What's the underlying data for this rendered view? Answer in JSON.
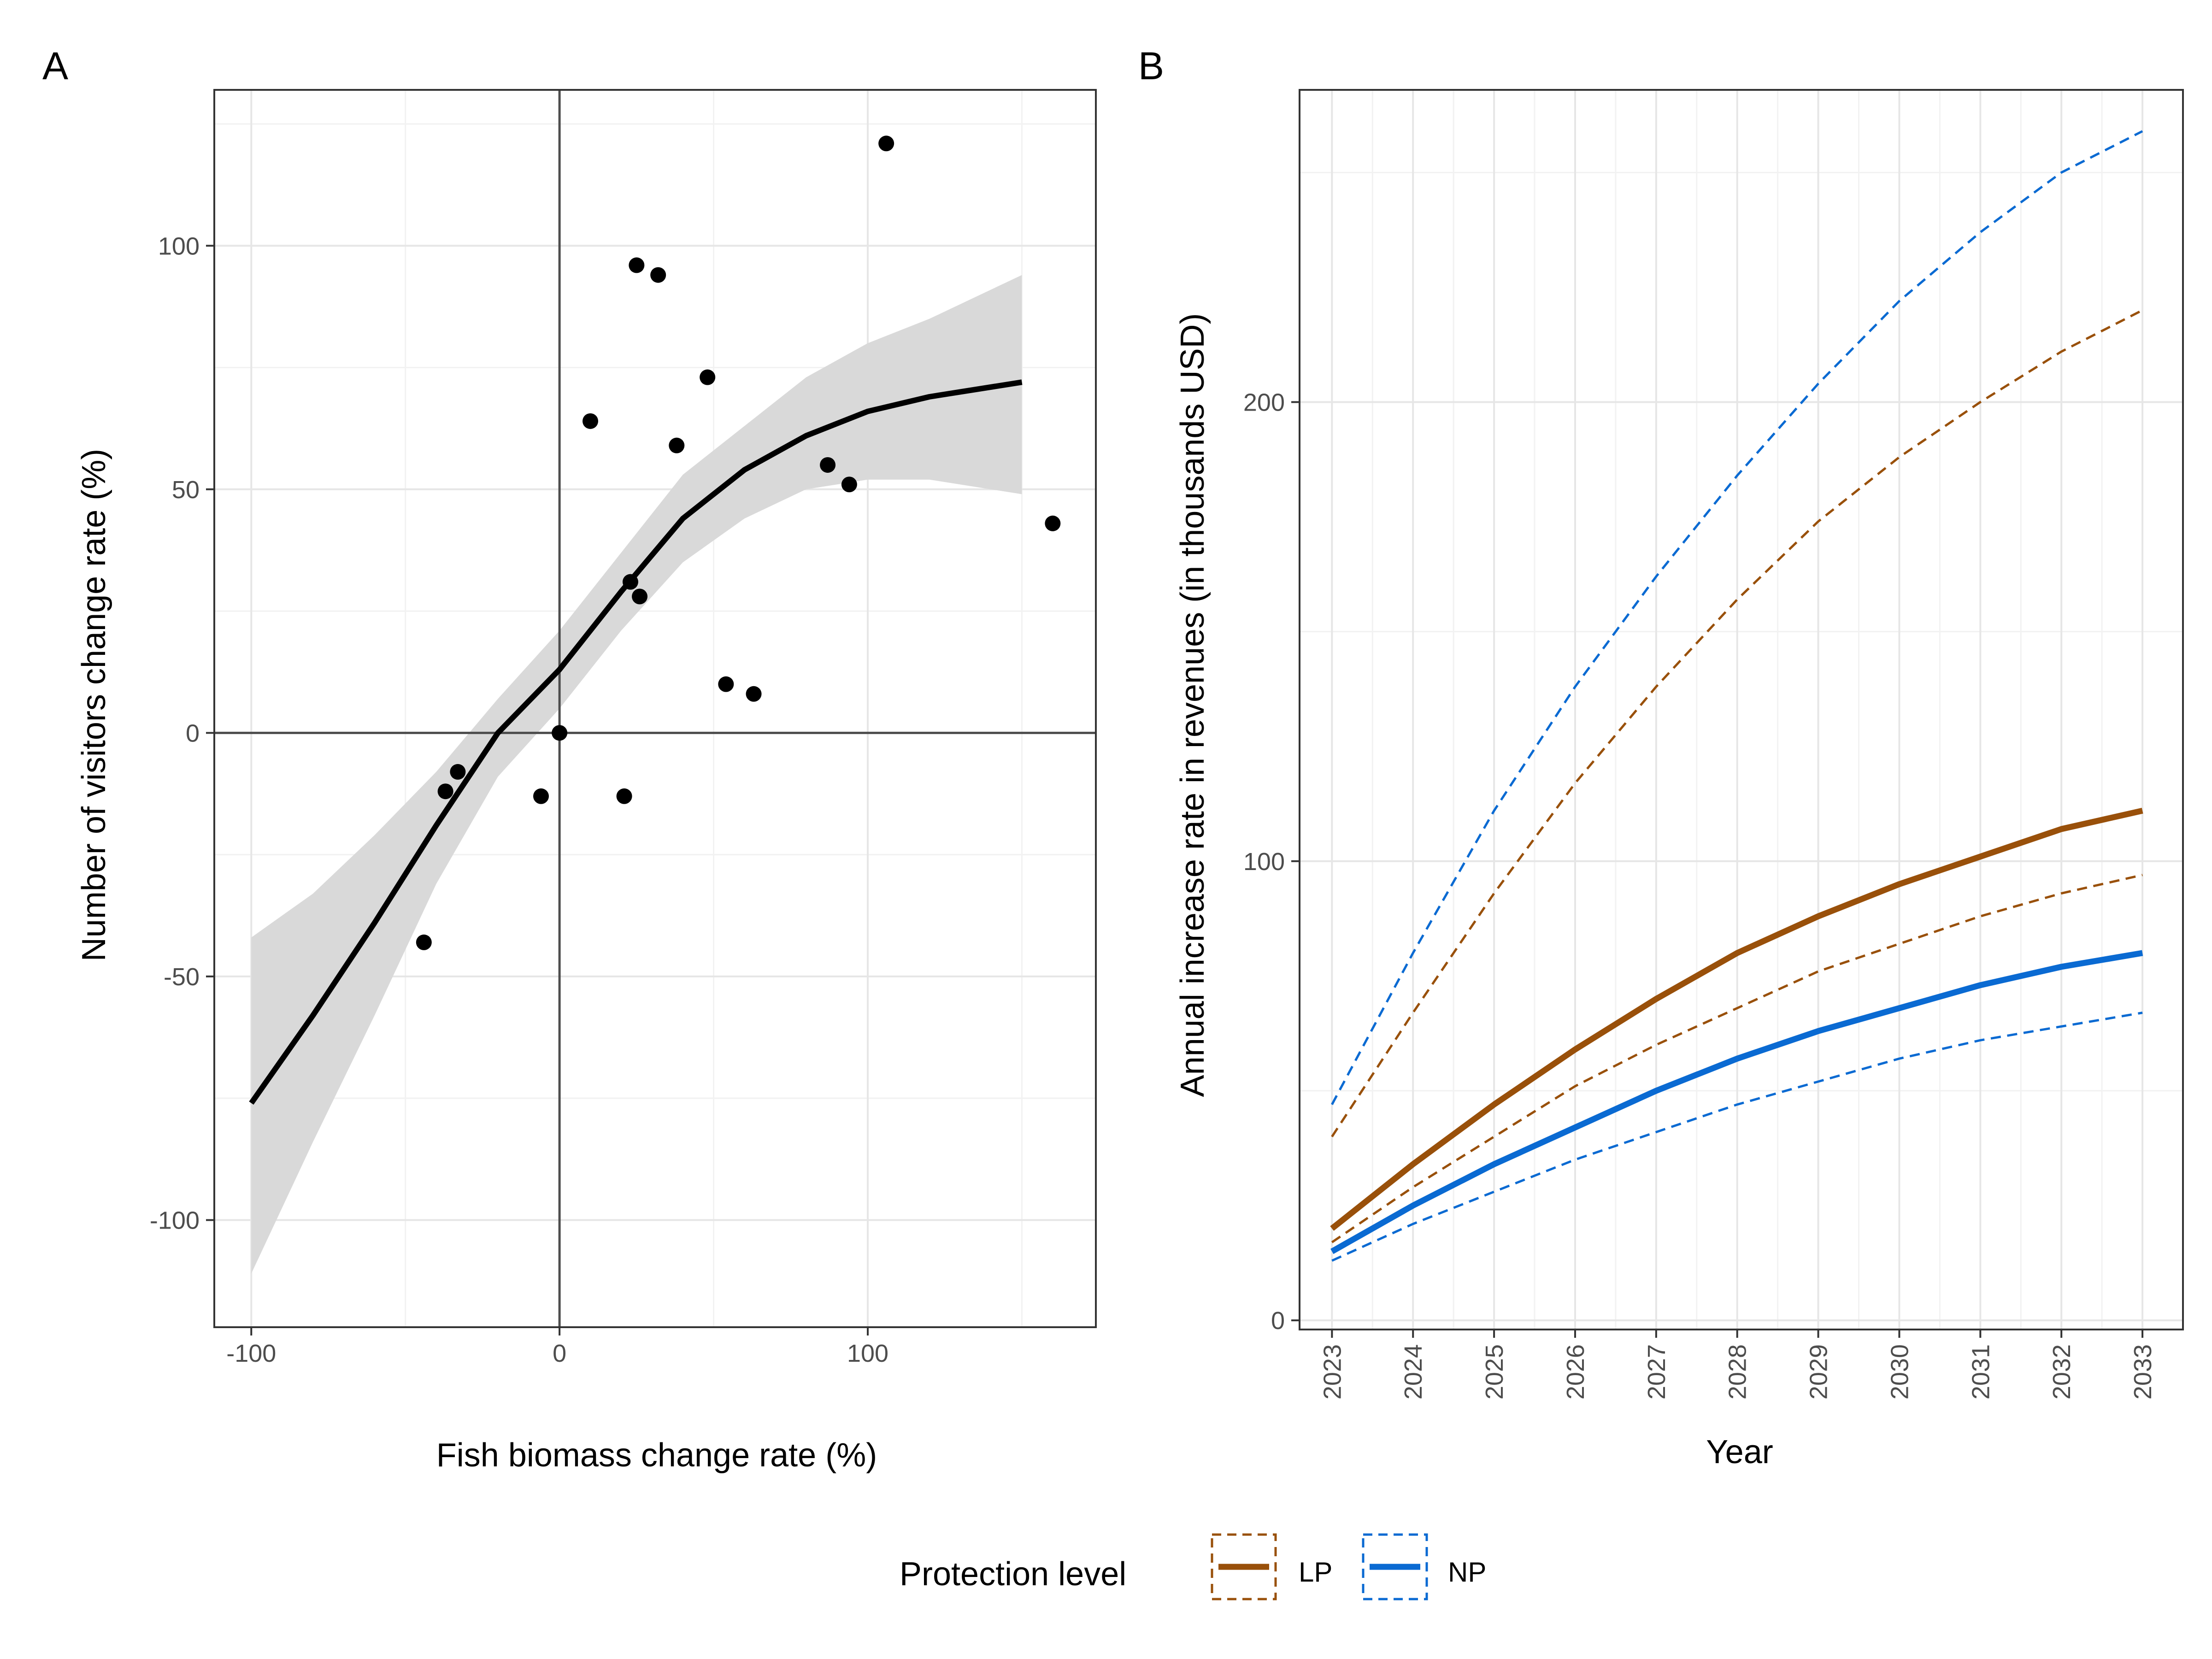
{
  "colors": {
    "LP": "#99500a",
    "NP": "#0a6ad2",
    "ribbon": "#d9d9d9",
    "grid_major": "#e6e6e6",
    "grid_minor": "#f2f2f2",
    "panel_border": "#333333",
    "ref_line": "#4d4d4d"
  },
  "chart_data": [
    {
      "panel": "A",
      "type": "scatter",
      "title": "",
      "xlabel": "Fish biomass change rate (%)",
      "ylabel": "Number of visitors change rate (%)",
      "xlim": [
        -112,
        174
      ],
      "ylim": [
        -122,
        132
      ],
      "xticks": [
        -100,
        0,
        100
      ],
      "xtick_labels": [
        "-100",
        "0",
        "100"
      ],
      "yticks": [
        -100,
        -50,
        0,
        50,
        100
      ],
      "ytick_labels": [
        "-100",
        "-50",
        "0",
        "50",
        "100"
      ],
      "grid": true,
      "reference_lines": {
        "x": 0,
        "y": 0
      },
      "points": [
        {
          "x": -44,
          "y": -43
        },
        {
          "x": -37,
          "y": -12
        },
        {
          "x": -33,
          "y": -8
        },
        {
          "x": -6,
          "y": -13
        },
        {
          "x": 0,
          "y": 0
        },
        {
          "x": 10,
          "y": 64
        },
        {
          "x": 21,
          "y": -13
        },
        {
          "x": 23,
          "y": 31
        },
        {
          "x": 25,
          "y": 96
        },
        {
          "x": 26,
          "y": 28
        },
        {
          "x": 32,
          "y": 94
        },
        {
          "x": 38,
          "y": 59
        },
        {
          "x": 48,
          "y": 73
        },
        {
          "x": 54,
          "y": 10
        },
        {
          "x": 63,
          "y": 8
        },
        {
          "x": 87,
          "y": 55
        },
        {
          "x": 94,
          "y": 51
        },
        {
          "x": 106,
          "y": 121
        },
        {
          "x": 160,
          "y": 43
        }
      ],
      "smooth_fit": {
        "x": [
          -100,
          -80,
          -60,
          -40,
          -20,
          0,
          20,
          40,
          60,
          80,
          100,
          120,
          150
        ],
        "y": [
          -76,
          -58,
          -39,
          -19,
          0,
          13,
          29,
          44,
          54,
          61,
          66,
          69,
          72
        ],
        "lower": [
          -111,
          -84,
          -58,
          -31,
          -9,
          5,
          21,
          35,
          44,
          50,
          52,
          52,
          49
        ],
        "upper": [
          -42,
          -33,
          -21,
          -8,
          7,
          21,
          37,
          53,
          63,
          73,
          80,
          85,
          94
        ]
      }
    },
    {
      "panel": "B",
      "type": "line",
      "title": "",
      "xlabel": "Year",
      "ylabel": "Annual increase rate in revenues (in thousands USD)",
      "x": [
        2023,
        2024,
        2025,
        2026,
        2027,
        2028,
        2029,
        2030,
        2031,
        2032,
        2033
      ],
      "xtick_labels": [
        "2023",
        "2024",
        "2025",
        "2026",
        "2027",
        "2028",
        "2029",
        "2030",
        "2031",
        "2032",
        "2033"
      ],
      "xlim": [
        2022.6,
        2033.5
      ],
      "ylim": [
        -2,
        268
      ],
      "yticks": [
        0,
        100,
        200
      ],
      "ytick_labels": [
        "0",
        "100",
        "200"
      ],
      "grid": true,
      "series": [
        {
          "name": "LP",
          "values": [
            20,
            34,
            47,
            59,
            70,
            80,
            88,
            95,
            101,
            107,
            111
          ],
          "lower": [
            17,
            29,
            40,
            51,
            60,
            68,
            76,
            82,
            88,
            93,
            97
          ],
          "upper": [
            40,
            67,
            93,
            117,
            138,
            157,
            174,
            188,
            200,
            211,
            220
          ]
        },
        {
          "name": "NP",
          "values": [
            15,
            25,
            34,
            42,
            50,
            57,
            63,
            68,
            73,
            77,
            80
          ],
          "lower": [
            13,
            21,
            28,
            35,
            41,
            47,
            52,
            57,
            61,
            64,
            67
          ],
          "upper": [
            47,
            80,
            111,
            138,
            162,
            184,
            204,
            222,
            237,
            250,
            259
          ]
        }
      ]
    }
  ],
  "legend": {
    "title": "Protection level",
    "position": "bottom",
    "items": [
      {
        "key": "LP",
        "label": "LP"
      },
      {
        "key": "NP",
        "label": "NP"
      }
    ]
  },
  "panels": {
    "a_tag": "A",
    "b_tag": "B"
  }
}
